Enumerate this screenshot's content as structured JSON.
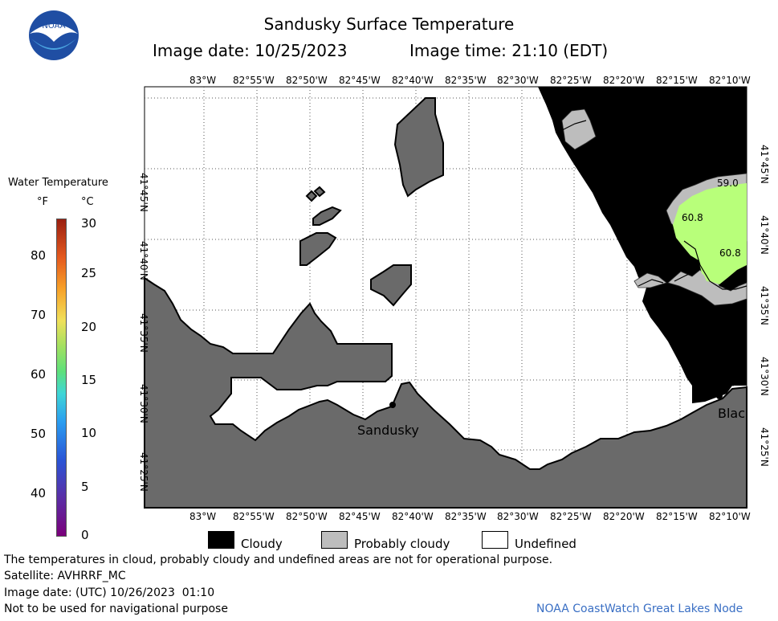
{
  "header": {
    "title": "Sandusky Surface Temperature",
    "image_date": "Image date: 10/25/2023",
    "image_time": "Image time: 21:10 (EDT)"
  },
  "logo": {
    "text": "NOAA"
  },
  "scale": {
    "title": "Water Temperature",
    "unit_f": "°F",
    "unit_c": "°C",
    "f_ticks": [
      "80",
      "70",
      "60",
      "50",
      "40"
    ],
    "c_ticks": [
      "30",
      "25",
      "20",
      "15",
      "10",
      "5",
      "0"
    ]
  },
  "map": {
    "lon_labels": [
      "83°W",
      "82°55'W",
      "82°50'W",
      "82°45'W",
      "82°40'W",
      "82°35'W",
      "82°30'W",
      "82°25'W",
      "82°20'W",
      "82°15'W",
      "82°10'W"
    ],
    "lat_labels": [
      "41°45'N",
      "41°40'N",
      "41°35'N",
      "41°30'N",
      "41°25'N"
    ],
    "places": {
      "sandusky": "Sandusky",
      "other": "Blac"
    },
    "temp_labels": [
      "59.0",
      "60.8",
      "60.8"
    ]
  },
  "legend": {
    "cloudy": "Cloudy",
    "probably_cloudy": "Probably cloudy",
    "undefined": "Undefined"
  },
  "footer": {
    "disclaimer": "The temperatures in cloud, probably cloudy and undefined areas are not for operational purpose.",
    "satellite": "Satellite: AVHRRF_MC",
    "utc_date": "Image date: (UTC) 10/26/2023  01:10",
    "navigation": "Not to be used for navigational purpose",
    "credit": "NOAA CoastWatch Great Lakes Node"
  },
  "colors": {
    "land": "#6a6a6a",
    "cloud": "#000000",
    "probably_cloudy": "#bdbdbd",
    "water_warm": "#b8ff7a",
    "credit": "#3a6fc4"
  }
}
